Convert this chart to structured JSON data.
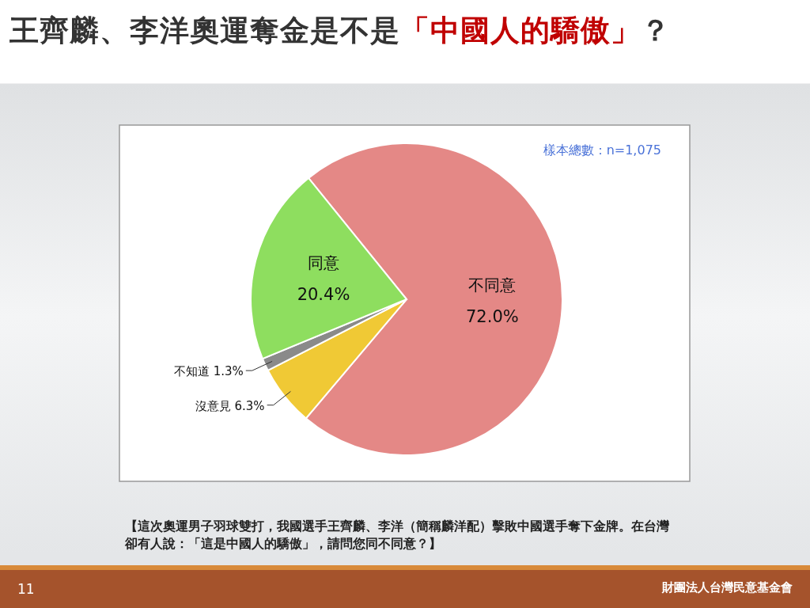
{
  "chart_data": {
    "type": "pie",
    "title": "王齊麟、李洋奧運奪金是不是「中國人的驕傲」？",
    "categories": [
      "不同意",
      "沒意見",
      "不知道",
      "同意"
    ],
    "values": [
      72.0,
      6.3,
      1.3,
      20.4
    ],
    "value_labels": [
      "72.0%",
      "6.3%",
      "1.3%",
      "20.4%"
    ],
    "colors": [
      "#e48886",
      "#f0c935",
      "#8a8a8a",
      "#8ede5f"
    ],
    "annotations": [
      "樣本總數：n=1,075",
      "【這次奧運男子羽球雙打，我國選手王齊麟、李洋（簡稱麟洋配）擊敗中國選手奪下金牌。在台灣卻有人說：「這是中國人的驕傲」，請問您同不同意？】",
      "11",
      "財團法人台灣民意基金會"
    ]
  }
}
